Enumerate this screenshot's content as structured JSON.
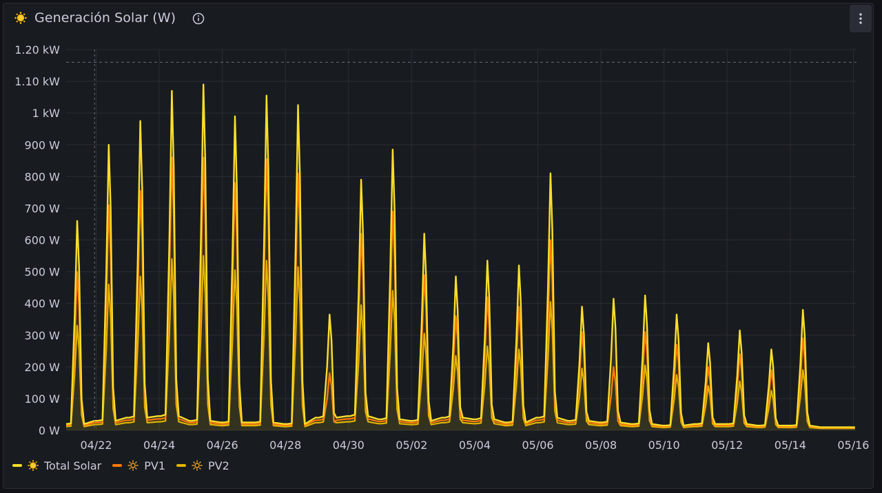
{
  "panel": {
    "title": "Generación Solar (W)",
    "title_icon": "sun-icon",
    "info_icon": "info-icon",
    "menu_icon": "kebab-menu-icon"
  },
  "colors": {
    "total": "#FADE2A",
    "pv1": "#FF780A",
    "pv2": "#E0B400",
    "grid": "#2a2d35",
    "text": "#ccccdc"
  },
  "legend": [
    {
      "label": "Total Solar",
      "icon": "sun-filled-icon",
      "color": "#FADE2A"
    },
    {
      "label": "PV1",
      "icon": "sun-outline-icon",
      "color": "#FF780A"
    },
    {
      "label": "PV2",
      "icon": "sun-outline-icon",
      "color": "#E0B400"
    }
  ],
  "chart_data": {
    "type": "line",
    "title": "Generación Solar (W)",
    "y_tick_labels": [
      "0 W",
      "100 W",
      "200 W",
      "300 W",
      "400 W",
      "500 W",
      "600 W",
      "700 W",
      "800 W",
      "900 W",
      "1 kW",
      "1.10 kW",
      "1.20 kW"
    ],
    "ylim": [
      0,
      1200
    ],
    "x_tick_labels": [
      "04/22",
      "04/24",
      "04/26",
      "04/28",
      "04/30",
      "05/02",
      "05/04",
      "05/06",
      "05/08",
      "05/10",
      "05/12",
      "05/14",
      "05/16"
    ],
    "x_tick_days": [
      1,
      3,
      5,
      7,
      9,
      11,
      13,
      15,
      17,
      19,
      21,
      23,
      25
    ],
    "x_start": "04/21",
    "xlim_days": [
      0.05,
      25.1
    ],
    "threshold_line_w": 1160,
    "cursor_day": 0.95,
    "days": [
      "04/21",
      "04/22",
      "04/23",
      "04/24",
      "04/25",
      "04/26",
      "04/27",
      "04/28",
      "04/29",
      "04/30",
      "05/01",
      "05/02",
      "05/03",
      "05/04",
      "05/05",
      "05/06",
      "05/07",
      "05/08",
      "05/09",
      "05/10",
      "05/11",
      "05/12",
      "05/13",
      "05/14",
      "05/15",
      "05/16"
    ],
    "series": [
      {
        "name": "Total Solar",
        "daily_peak_w": [
          660,
          900,
          975,
          1070,
          1090,
          990,
          1055,
          1025,
          365,
          790,
          885,
          620,
          485,
          535,
          520,
          810,
          390,
          415,
          425,
          365,
          275,
          315,
          255,
          380,
          0,
          0
        ]
      },
      {
        "name": "PV1",
        "daily_peak_w": [
          500,
          710,
          755,
          860,
          860,
          780,
          855,
          810,
          180,
          620,
          690,
          490,
          360,
          420,
          390,
          600,
          310,
          200,
          310,
          270,
          200,
          240,
          190,
          290,
          0,
          0
        ]
      },
      {
        "name": "PV2",
        "daily_peak_w": [
          330,
          460,
          485,
          540,
          550,
          505,
          535,
          515,
          180,
          395,
          440,
          305,
          235,
          265,
          255,
          405,
          195,
          195,
          205,
          175,
          140,
          155,
          125,
          190,
          0,
          0
        ]
      }
    ],
    "night_baseline_w": [
      20,
      30,
      40,
      45,
      30,
      25,
      25,
      20,
      40,
      45,
      35,
      30,
      40,
      35,
      25,
      40,
      30,
      25,
      20,
      15,
      20,
      20,
      15,
      15,
      10,
      10
    ],
    "legend_position": "bottom-left",
    "grid": true
  }
}
